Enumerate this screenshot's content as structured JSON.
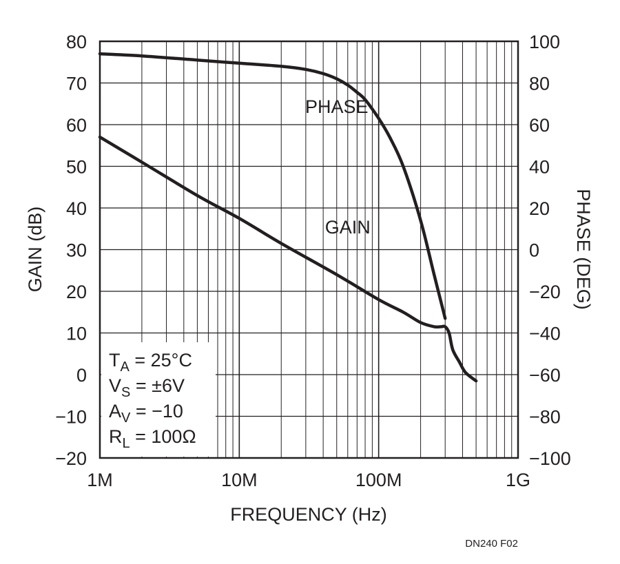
{
  "chart_data": {
    "type": "line",
    "x_scale": "log",
    "xlim": [
      1000000,
      1000000000
    ],
    "xlabel": "FREQUENCY (Hz)",
    "x_ticks": [
      {
        "value": 1000000,
        "label": "1M"
      },
      {
        "value": 10000000,
        "label": "10M"
      },
      {
        "value": 100000000,
        "label": "100M"
      },
      {
        "value": 1000000000,
        "label": "1G"
      }
    ],
    "ylabel_left": "GAIN (dB)",
    "ylim_left": [
      -20,
      80
    ],
    "y_ticks_left": [
      "80",
      "70",
      "60",
      "50",
      "40",
      "30",
      "20",
      "10",
      "0",
      "−10",
      "−20"
    ],
    "ylabel_right": "PHASE (DEG)",
    "ylim_right": [
      -100,
      100
    ],
    "y_ticks_right": [
      "100",
      "80",
      "60",
      "40",
      "20",
      "0",
      "−20",
      "−40",
      "−60",
      "−80",
      "−100"
    ],
    "grid": true,
    "series": [
      {
        "name": "GAIN",
        "axis": "left",
        "x": [
          1000000,
          2000000,
          5000000,
          10000000,
          20000000,
          50000000,
          100000000,
          150000000,
          200000000,
          250000000,
          280000000,
          300000000,
          320000000,
          340000000,
          380000000,
          420000000,
          500000000
        ],
        "y": [
          57,
          51,
          43,
          37.5,
          31.5,
          24,
          18,
          15,
          12.5,
          11.5,
          11.5,
          11.5,
          10,
          6,
          3,
          0.5,
          -1.5
        ]
      },
      {
        "name": "PHASE",
        "axis": "right",
        "x": [
          1000000,
          2000000,
          5000000,
          10000000,
          20000000,
          30000000,
          40000000,
          50000000,
          60000000,
          70000000,
          80000000,
          100000000,
          120000000,
          150000000,
          200000000,
          250000000,
          300000000
        ],
        "y": [
          94,
          93,
          91,
          89.5,
          88,
          86.5,
          84.5,
          82,
          79,
          75.5,
          72,
          63,
          54,
          40,
          14,
          -12,
          -33
        ]
      }
    ],
    "annotations": [
      {
        "text": "PHASE",
        "x": 50000000,
        "y_left": 64.5
      },
      {
        "text": "GAIN",
        "x": 60000000,
        "y_left": 35.5
      }
    ],
    "conditions": [
      {
        "base": "T",
        "sub": "A",
        "rest": " = 25°C"
      },
      {
        "base": "V",
        "sub": "S",
        "rest": " = ±6V"
      },
      {
        "base": "A",
        "sub": "V",
        "rest": " = −10"
      },
      {
        "base": "R",
        "sub": "L",
        "rest": " = 100Ω"
      }
    ],
    "figure_id": "DN240 F02"
  },
  "colors": {
    "curve": "#231f20",
    "grid": "#231f20",
    "background": "#ffffff"
  }
}
